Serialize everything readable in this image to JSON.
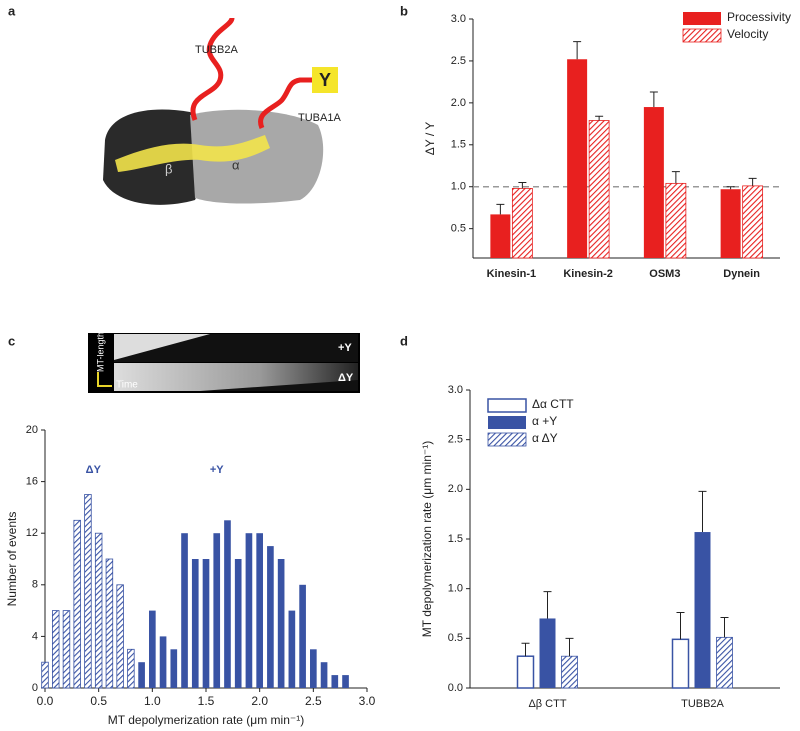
{
  "panel_labels": [
    "a",
    "b",
    "c",
    "d"
  ],
  "illustration": {
    "tail_top": "TUBB2A",
    "tail_right": "TUBA1A",
    "tag": "Y",
    "beta": "β",
    "alpha": "α"
  },
  "kymograph": {
    "y_axis": "MT-length",
    "x_axis": "Time",
    "rows": [
      "+Y",
      "ΔY"
    ]
  },
  "chart_data": [
    {
      "type": "bar",
      "ylabel": "ΔY / Y",
      "categories": [
        "Kinesin-1",
        "Kinesin-2",
        "OSM3",
        "Dynein"
      ],
      "series": [
        {
          "name": "Processivity",
          "color": "#e8201f",
          "style": "solid",
          "values": [
            0.67,
            2.52,
            1.95,
            0.97
          ],
          "errors": [
            0.12,
            0.21,
            0.18,
            0.03
          ]
        },
        {
          "name": "Velocity",
          "color": "#e8201f",
          "style": "hatched",
          "values": [
            0.98,
            1.79,
            1.04,
            1.01
          ],
          "errors": [
            0.07,
            0.05,
            0.14,
            0.09
          ]
        }
      ],
      "ylim": [
        0.15,
        3.0
      ],
      "yticks": [
        0.5,
        {
          "value": 1,
          "label": "1.0"
        },
        1.5,
        {
          "value": 2,
          "label": "2.0"
        },
        2.5,
        {
          "value": 3,
          "label": "3.0"
        }
      ],
      "reference_line": 1,
      "legend": "upper-right"
    },
    {
      "type": "histogram",
      "xlabel": "MT depolymerization rate (μm min⁻¹)",
      "ylabel": "Number of events",
      "annotations": [
        "ΔY",
        "+Y"
      ],
      "series": [
        {
          "name": "ΔY",
          "color": "#3953a4",
          "style": "hatched",
          "x": [
            0.0,
            0.1,
            0.2,
            0.3,
            0.4,
            0.5,
            0.6,
            0.7,
            0.8
          ],
          "values": [
            2,
            6,
            6,
            13,
            15,
            12,
            10,
            8,
            3
          ]
        },
        {
          "name": "+Y",
          "color": "#3953a4",
          "style": "solid",
          "x": [
            0.9,
            1.0,
            1.1,
            1.2,
            1.3,
            1.4,
            1.5,
            1.6,
            1.7,
            1.8,
            1.9,
            2.0,
            2.1,
            2.2,
            2.3,
            2.4,
            2.5,
            2.6,
            2.7,
            2.8
          ],
          "values": [
            2,
            6,
            4,
            3,
            12,
            10,
            10,
            12,
            13,
            10,
            12,
            12,
            11,
            10,
            6,
            8,
            3,
            2,
            1,
            1
          ]
        }
      ],
      "xlim": [
        0,
        3
      ],
      "xticks": [
        {
          "value": 0,
          "label": "0.0"
        },
        0.5,
        {
          "value": 1,
          "label": "1.0"
        },
        1.5,
        {
          "value": 2,
          "label": "2.0"
        },
        2.5,
        {
          "value": 3,
          "label": "3.0"
        }
      ],
      "ylim": [
        0,
        20
      ],
      "yticks": [
        0,
        4,
        8,
        12,
        16,
        20
      ]
    },
    {
      "type": "bar",
      "ylabel": "MT depolymerization rate (μm min⁻¹)",
      "categories": [
        "Δβ CTT",
        "TUBB2A"
      ],
      "series": [
        {
          "name": "Δα CTT",
          "color": "#3953a4",
          "style": "open",
          "values": [
            0.32,
            0.49
          ],
          "errors": [
            0.13,
            0.27
          ]
        },
        {
          "name": "α +Y",
          "color": "#3953a4",
          "style": "solid",
          "values": [
            0.7,
            1.57
          ],
          "errors": [
            0.27,
            0.41
          ]
        },
        {
          "name": "α ΔY",
          "color": "#3953a4",
          "style": "hatched",
          "values": [
            0.32,
            0.51
          ],
          "errors": [
            0.18,
            0.2
          ]
        }
      ],
      "ylim": [
        0,
        3.0
      ],
      "yticks": [
        {
          "value": 0,
          "label": "0.0"
        },
        0.5,
        {
          "value": 1,
          "label": "1.0"
        },
        1.5,
        {
          "value": 2,
          "label": "2.0"
        },
        2.5,
        {
          "value": 3,
          "label": "3.0"
        }
      ],
      "legend": "upper-left"
    }
  ]
}
